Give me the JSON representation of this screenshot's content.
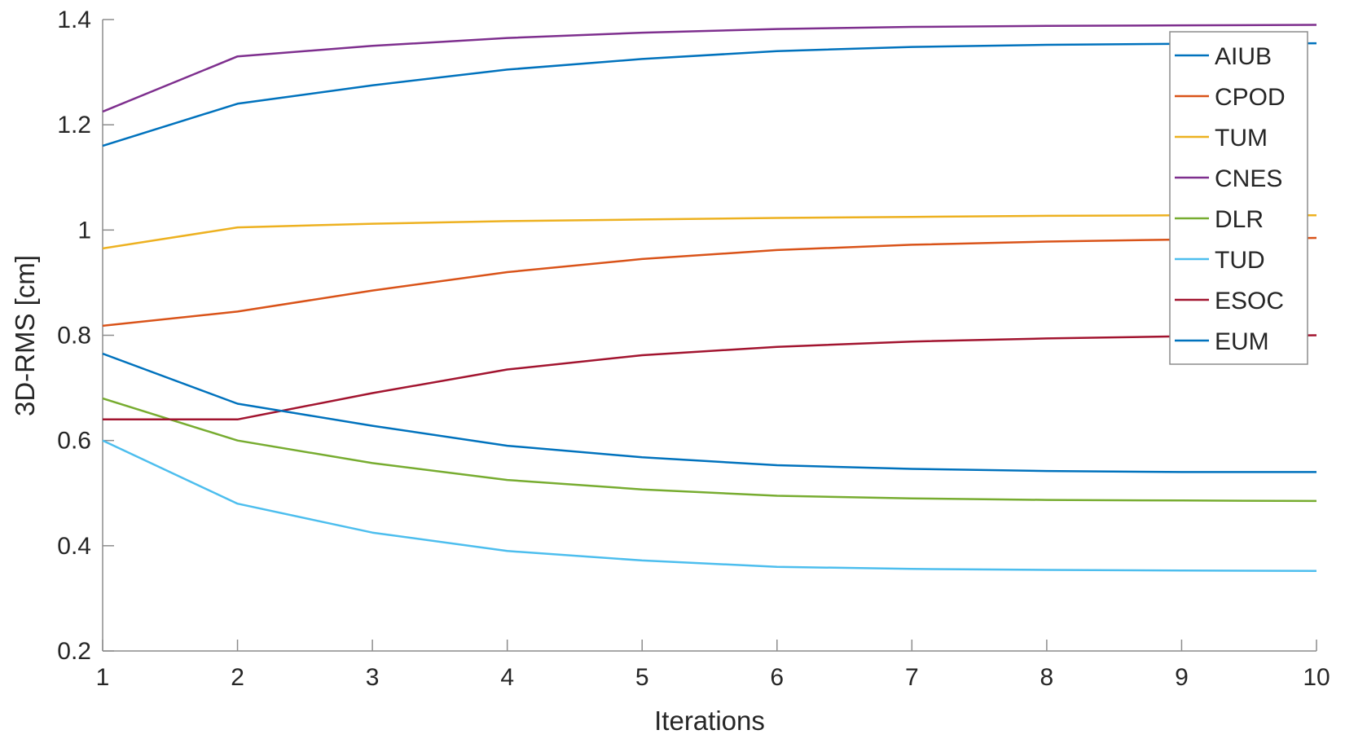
{
  "chart_data": {
    "type": "line",
    "title": "",
    "xlabel": "Iterations",
    "ylabel": "3D-RMS [cm]",
    "x": [
      1,
      2,
      3,
      4,
      5,
      6,
      7,
      8,
      9,
      10
    ],
    "xlim": [
      1,
      10
    ],
    "ylim": [
      0.2,
      1.4
    ],
    "x_ticks": [
      "1",
      "2",
      "3",
      "4",
      "5",
      "6",
      "7",
      "8",
      "9",
      "10"
    ],
    "y_ticks": [
      "0.2",
      "0.4",
      "0.6",
      "0.8",
      "1",
      "1.2",
      "1.4"
    ],
    "y_tick_values": [
      0.2,
      0.4,
      0.6,
      0.8,
      1.0,
      1.2,
      1.4
    ],
    "grid": "off",
    "legend_position": "top-right-inside",
    "axis_color": "#8c8c8c",
    "text_color": "#262626",
    "line_width": 2.5,
    "series": [
      {
        "name": "AIUB",
        "color": "#0072BD",
        "values": [
          1.16,
          1.24,
          1.275,
          1.305,
          1.325,
          1.34,
          1.348,
          1.352,
          1.354,
          1.355
        ]
      },
      {
        "name": "CPOD",
        "color": "#D95319",
        "values": [
          0.818,
          0.845,
          0.885,
          0.92,
          0.945,
          0.962,
          0.972,
          0.978,
          0.982,
          0.985
        ]
      },
      {
        "name": "TUM",
        "color": "#EDB120",
        "values": [
          0.965,
          1.005,
          1.012,
          1.017,
          1.02,
          1.023,
          1.025,
          1.027,
          1.028,
          1.028
        ]
      },
      {
        "name": "CNES",
        "color": "#7E2F8E",
        "values": [
          1.225,
          1.33,
          1.35,
          1.365,
          1.375,
          1.382,
          1.386,
          1.388,
          1.389,
          1.39
        ]
      },
      {
        "name": "DLR",
        "color": "#77AC30",
        "values": [
          0.68,
          0.6,
          0.557,
          0.525,
          0.507,
          0.495,
          0.49,
          0.487,
          0.486,
          0.485
        ]
      },
      {
        "name": "TUD",
        "color": "#4DBEEE",
        "values": [
          0.6,
          0.48,
          0.425,
          0.39,
          0.372,
          0.36,
          0.356,
          0.354,
          0.353,
          0.352
        ]
      },
      {
        "name": "ESOC",
        "color": "#A2142F",
        "values": [
          0.64,
          0.64,
          0.69,
          0.735,
          0.762,
          0.778,
          0.788,
          0.794,
          0.798,
          0.8
        ]
      },
      {
        "name": "EUM",
        "color": "#0072BD",
        "values": [
          0.765,
          0.67,
          0.628,
          0.59,
          0.568,
          0.553,
          0.546,
          0.542,
          0.54,
          0.54
        ]
      }
    ]
  }
}
